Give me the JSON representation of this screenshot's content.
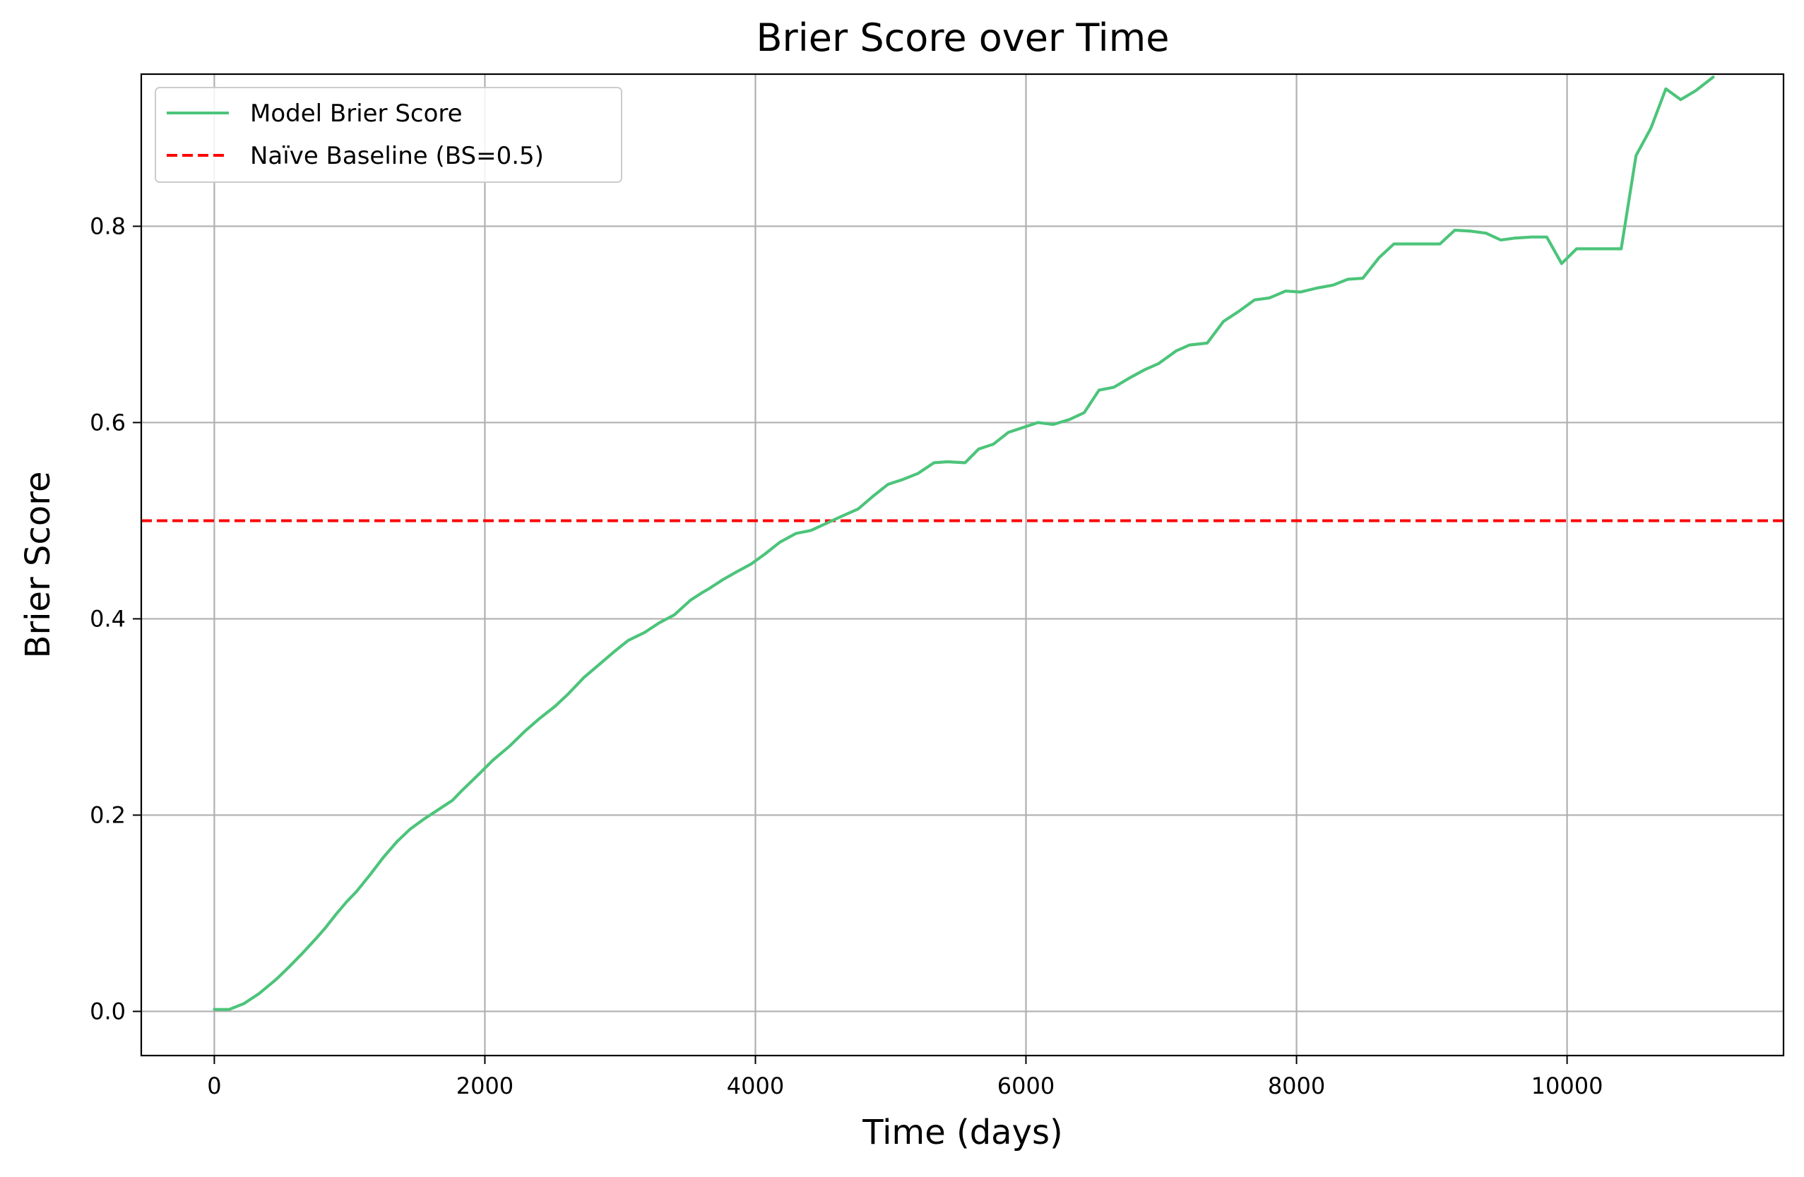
{
  "chart_data": {
    "type": "line",
    "title": "Brier Score over Time",
    "xlabel": "Time (days)",
    "ylabel": "Brier Score",
    "xlim": [
      -540,
      11600
    ],
    "ylim": [
      -0.045,
      0.955
    ],
    "xticks": [
      0,
      2000,
      4000,
      6000,
      8000,
      10000
    ],
    "xtick_labels": [
      "0",
      "2000",
      "4000",
      "6000",
      "8000",
      "10000"
    ],
    "yticks": [
      0.0,
      0.2,
      0.4,
      0.6,
      0.8
    ],
    "ytick_labels": [
      "0.0",
      "0.2",
      "0.4",
      "0.6",
      "0.8"
    ],
    "grid": true,
    "legend_position": "top-left",
    "colors": {
      "model": "#4cc47a",
      "baseline": "#ff0000",
      "grid": "#b0b0b0"
    },
    "series": [
      {
        "name": "Model Brier Score",
        "style": "solid",
        "x": [
          0,
          110,
          220,
          330,
          400,
          460,
          550,
          650,
          750,
          820,
          900,
          980,
          1050,
          1150,
          1250,
          1350,
          1450,
          1550,
          1650,
          1760,
          1830,
          1950,
          2060,
          2180,
          2300,
          2400,
          2520,
          2620,
          2730,
          2850,
          2960,
          3060,
          3180,
          3290,
          3400,
          3520,
          3610,
          3660,
          3760,
          3850,
          3970,
          4070,
          4180,
          4300,
          4410,
          4520,
          4630,
          4760,
          4870,
          4980,
          5090,
          5200,
          5320,
          5420,
          5550,
          5650,
          5760,
          5870,
          5980,
          6090,
          6200,
          6320,
          6430,
          6540,
          6650,
          6760,
          6880,
          6980,
          7110,
          7210,
          7340,
          7460,
          7570,
          7690,
          7800,
          7920,
          8030,
          8150,
          8270,
          8380,
          8490,
          8610,
          8720,
          8840,
          8950,
          9060,
          9170,
          9290,
          9400,
          9510,
          9620,
          9740,
          9850,
          9960,
          10070,
          10180,
          10290,
          10400,
          10510,
          10620,
          10730,
          10840,
          10950,
          11080
        ],
        "y": [
          0.002,
          0.002,
          0.008,
          0.018,
          0.026,
          0.033,
          0.045,
          0.059,
          0.074,
          0.085,
          0.099,
          0.112,
          0.122,
          0.139,
          0.157,
          0.173,
          0.186,
          0.196,
          0.205,
          0.215,
          0.225,
          0.241,
          0.256,
          0.27,
          0.286,
          0.298,
          0.311,
          0.324,
          0.34,
          0.354,
          0.367,
          0.378,
          0.386,
          0.396,
          0.404,
          0.419,
          0.427,
          0.431,
          0.44,
          0.447,
          0.456,
          0.466,
          0.478,
          0.487,
          0.49,
          0.497,
          0.504,
          0.512,
          0.525,
          0.537,
          0.542,
          0.548,
          0.559,
          0.56,
          0.559,
          0.573,
          0.578,
          0.59,
          0.595,
          0.6,
          0.598,
          0.603,
          0.61,
          0.633,
          0.636,
          0.645,
          0.654,
          0.66,
          0.673,
          0.679,
          0.681,
          0.703,
          0.713,
          0.725,
          0.727,
          0.734,
          0.733,
          0.737,
          0.74,
          0.746,
          0.747,
          0.768,
          0.782,
          0.782,
          0.782,
          0.782,
          0.796,
          0.795,
          0.793,
          0.786,
          0.788,
          0.789,
          0.789,
          0.762,
          0.777,
          0.777,
          0.777,
          0.777,
          0.872,
          0.9,
          0.94,
          0.929,
          0.938,
          0.952
        ]
      },
      {
        "name": "Naïve Baseline (BS=0.5)",
        "style": "dashed",
        "y_constant": 0.5
      }
    ]
  }
}
